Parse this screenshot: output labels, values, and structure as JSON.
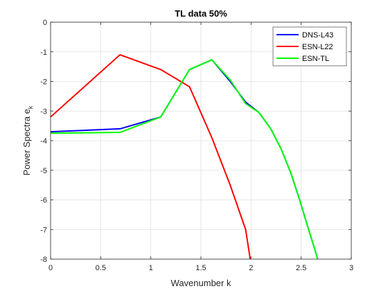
{
  "chart_data": {
    "type": "line",
    "title": "TL data 50%",
    "xlabel": "Wavenumber k",
    "ylabel_main": "Power Spectra e",
    "ylabel_sub": "k",
    "xlim": [
      0,
      3
    ],
    "ylim": [
      -8,
      0
    ],
    "xticks": [
      0,
      0.5,
      1,
      1.5,
      2,
      2.5,
      3
    ],
    "xtick_labels": [
      "0",
      "0.5",
      "1",
      "1.5",
      "2",
      "2.5",
      "3"
    ],
    "yticks": [
      0,
      -1,
      -2,
      -3,
      -4,
      -5,
      -6,
      -7,
      -8
    ],
    "ytick_labels": [
      "0",
      "-1",
      "-2",
      "-3",
      "-4",
      "-5",
      "-6",
      "-7",
      "-8"
    ],
    "grid": true,
    "legend_position": "top-right",
    "series": [
      {
        "name": "DNS-L43",
        "color": "#0000FF",
        "x": [
          0,
          0.693,
          1.099,
          1.386,
          1.609,
          1.792,
          1.946,
          2.079,
          2.197,
          2.303,
          2.398,
          2.485,
          2.565,
          2.639,
          2.708
        ],
        "y": [
          -3.7,
          -3.6,
          -3.2,
          -1.6,
          -1.27,
          -2.0,
          -2.7,
          -3.05,
          -3.6,
          -4.3,
          -5.1,
          -6.0,
          -6.9,
          -7.7,
          -8.5
        ]
      },
      {
        "name": "ESN-L22",
        "color": "#FF0000",
        "x": [
          0,
          0.693,
          1.099,
          1.386,
          1.609,
          1.792,
          1.946,
          2.015
        ],
        "y": [
          -3.2,
          -1.1,
          -1.6,
          -2.18,
          -3.9,
          -5.5,
          -7.0,
          -8.5
        ]
      },
      {
        "name": "ESN-TL",
        "color": "#00FF00",
        "x": [
          0,
          0.693,
          1.099,
          1.386,
          1.609,
          1.792,
          1.946,
          2.079,
          2.197,
          2.303,
          2.398,
          2.485,
          2.565,
          2.639,
          2.708
        ],
        "y": [
          -3.75,
          -3.72,
          -3.2,
          -1.6,
          -1.27,
          -1.95,
          -2.75,
          -3.05,
          -3.6,
          -4.3,
          -5.1,
          -6.0,
          -6.9,
          -7.7,
          -8.5
        ]
      }
    ]
  }
}
